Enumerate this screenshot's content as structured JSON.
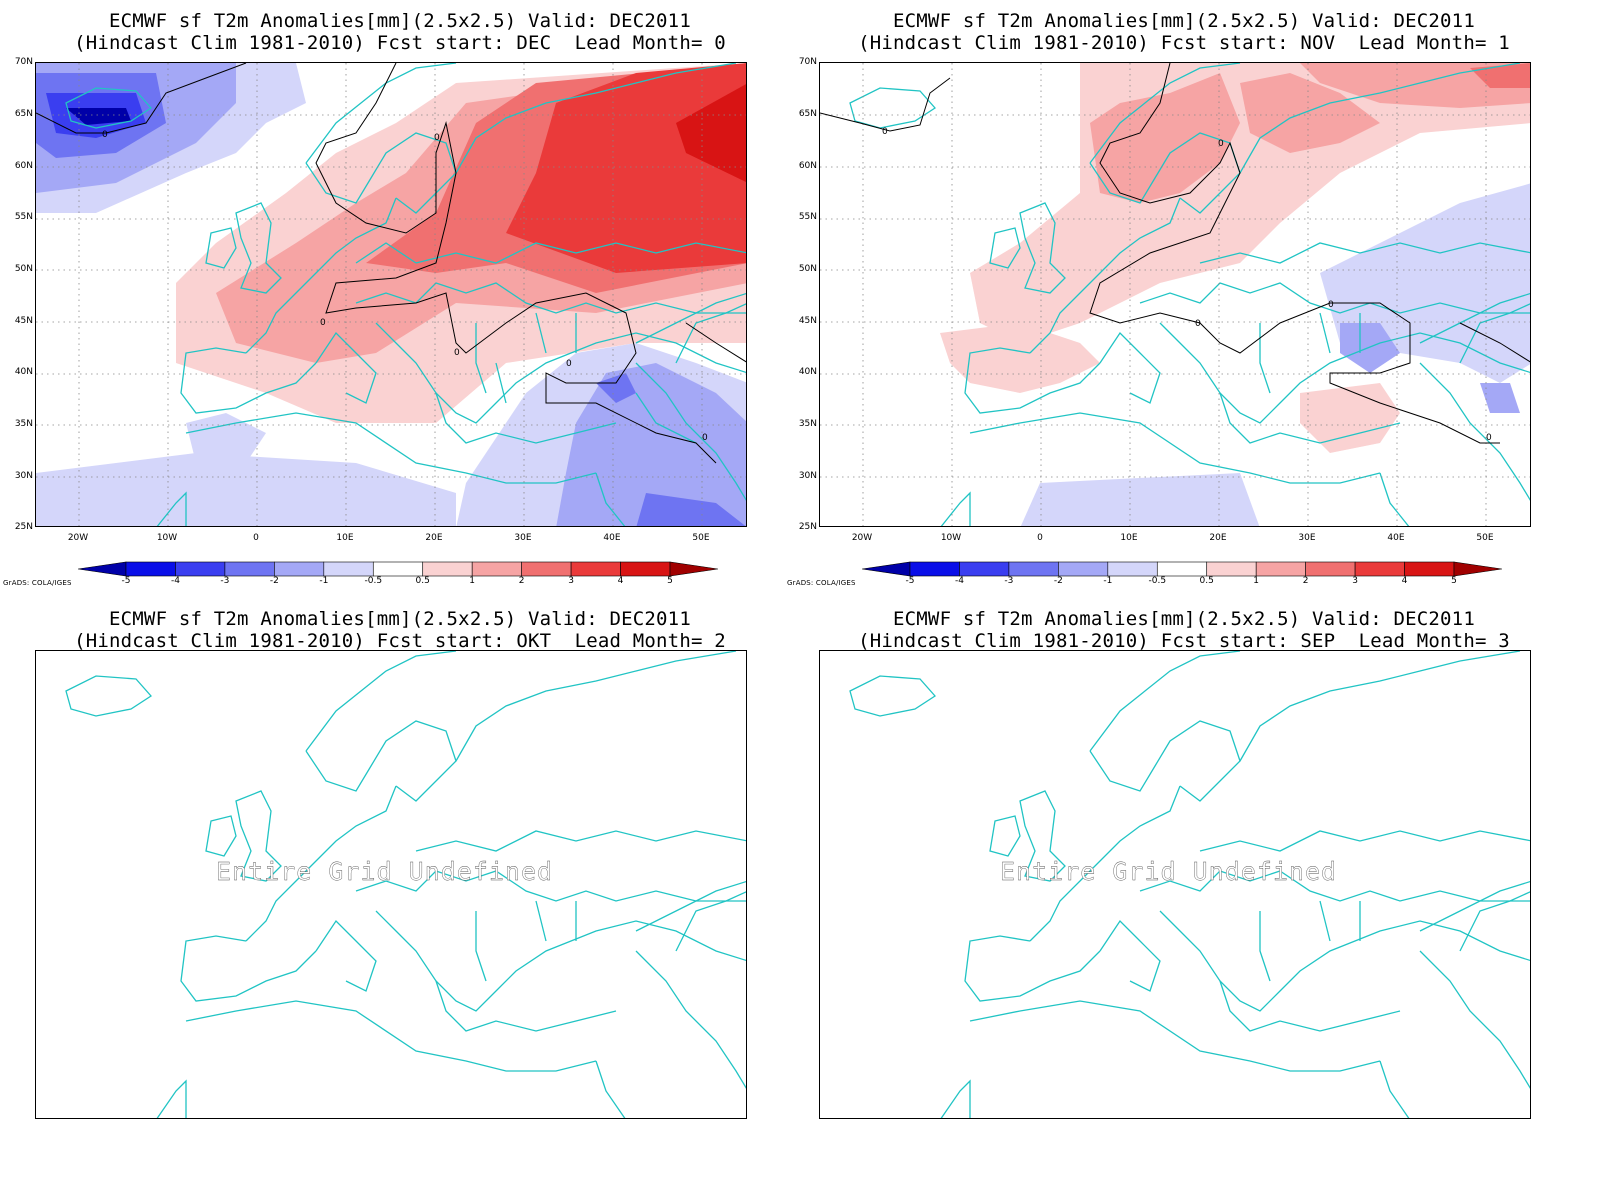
{
  "colorbar": {
    "labels": [
      "-5",
      "-4",
      "-3",
      "-2",
      "-1",
      "-0.5",
      "0.5",
      "1",
      "2",
      "3",
      "4",
      "5"
    ],
    "colors": [
      "#0000a8",
      "#0a0ee8",
      "#3a3ef0",
      "#6e74f2",
      "#a4a8f6",
      "#d4d6fa",
      "#ffffff",
      "#fad2d2",
      "#f6a4a4",
      "#f07070",
      "#ea3a3a",
      "#d81414",
      "#a00000"
    ]
  },
  "credit": "GrADS: COLA/IGES",
  "lat_labels": [
    "70N",
    "65N",
    "60N",
    "55N",
    "50N",
    "45N",
    "40N",
    "35N",
    "30N",
    "25N"
  ],
  "lon_labels": [
    "20W",
    "10W",
    "0",
    "10E",
    "20E",
    "30E",
    "40E",
    "50E"
  ],
  "contour_label": "0",
  "undefined_message": "Entire Grid Undefined",
  "panels": [
    {
      "title_line1": "ECMWF sf T2m Anomalies[mm](2.5x2.5) Valid: DEC2011",
      "title_line2": "(Hindcast Clim 1981-2010) Fcst start: DEC  Lead Month= 0",
      "has_data": true
    },
    {
      "title_line1": "ECMWF sf T2m Anomalies[mm](2.5x2.5) Valid: DEC2011",
      "title_line2": "(Hindcast Clim 1981-2010) Fcst start: NOV  Lead Month= 1",
      "has_data": true
    },
    {
      "title_line1": "ECMWF sf T2m Anomalies[mm](2.5x2.5) Valid: DEC2011",
      "title_line2": "(Hindcast Clim 1981-2010) Fcst start: OKT  Lead Month= 2",
      "has_data": false
    },
    {
      "title_line1": "ECMWF sf T2m Anomalies[mm](2.5x2.5) Valid: DEC2011",
      "title_line2": "(Hindcast Clim 1981-2010) Fcst start: SEP  Lead Month= 3",
      "has_data": false
    }
  ]
}
